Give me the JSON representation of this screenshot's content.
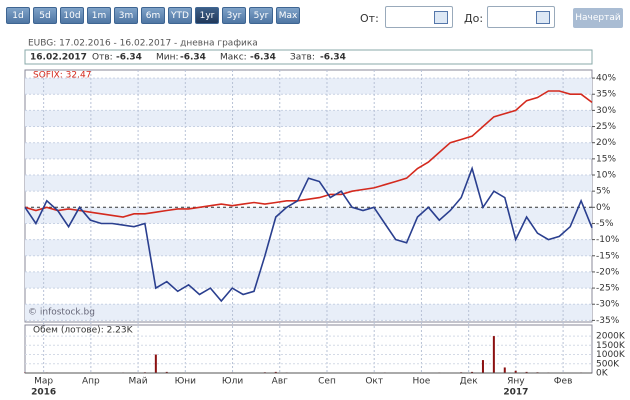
{
  "toolbar": {
    "ranges": [
      "1d",
      "5d",
      "10d",
      "1m",
      "3m",
      "6m",
      "YTD",
      "1yr",
      "3yr",
      "5yr",
      "Max"
    ],
    "active": "1yr",
    "from_label": "От:",
    "to_label": "До:",
    "button": "Начертай"
  },
  "chart_data": [
    {
      "type": "line",
      "title": "EUBG: 17.02.2016 - 16.02.2017 - дневна графика",
      "info": {
        "date": "16.02.2017",
        "fields": [
          {
            "label": "Отв:",
            "value": -6.34
          },
          {
            "label": "Мин:",
            "value": -6.34
          },
          {
            "label": "Макс:",
            "value": -6.34
          },
          {
            "label": "Затв:",
            "value": -6.34
          }
        ]
      },
      "watermark": "© infostock.bg",
      "series": [
        {
          "name": "SOFIX: 32.47",
          "color": "#d42a1e",
          "values": [
            0,
            -1,
            0,
            -1,
            -0.5,
            -1,
            -1.5,
            -2,
            -2.5,
            -3,
            -2,
            -2,
            -1.5,
            -1,
            -0.5,
            -0.5,
            0,
            0.5,
            1,
            0.5,
            1,
            1.5,
            1,
            1.5,
            2,
            2,
            2.5,
            3,
            4,
            4,
            5,
            5.5,
            6,
            7,
            8,
            9,
            12,
            14,
            17,
            20,
            21,
            22,
            25,
            28,
            29,
            30,
            33,
            34,
            36,
            36,
            35,
            35,
            32.47
          ]
        },
        {
          "color": "#2a3f8f",
          "values": [
            0,
            -5,
            2,
            -1,
            -6,
            0,
            -4,
            -5,
            -5,
            -5.5,
            -6,
            -5,
            -25,
            -23,
            -26,
            -24,
            -27,
            -25,
            -29,
            -25,
            -27,
            -26,
            -15,
            -3,
            0,
            2,
            9,
            8,
            3,
            5,
            0,
            -1,
            0,
            -5,
            -10,
            -11,
            -3,
            0,
            -4,
            -1,
            3,
            12,
            0,
            5,
            3,
            -10,
            -3,
            -8,
            -10,
            -9,
            -6,
            2,
            -6.34
          ]
        }
      ],
      "ylim": [
        -35.5,
        42.5
      ],
      "yticks": [
        {
          "value": 40,
          "label": "40%"
        },
        {
          "value": 35,
          "label": "35%"
        },
        {
          "value": 30,
          "label": "30%"
        },
        {
          "value": 25,
          "label": "25%"
        },
        {
          "value": 20,
          "label": "20%"
        },
        {
          "value": 15,
          "label": "15%"
        },
        {
          "value": 10,
          "label": "10%"
        },
        {
          "value": 5,
          "label": "5%"
        },
        {
          "value": 0,
          "label": "0%"
        },
        {
          "value": -5,
          "label": "-5%"
        },
        {
          "value": -10,
          "label": "-10%"
        },
        {
          "value": -15,
          "label": "-15%"
        },
        {
          "value": -20,
          "label": "-20%"
        },
        {
          "value": -25,
          "label": "-25%"
        },
        {
          "value": -30,
          "label": "-30%"
        },
        {
          "value": -35,
          "label": "-35%"
        }
      ],
      "grid": true
    },
    {
      "type": "bar",
      "title": "Обем (лотове): 2.23K",
      "color": "#8b1010",
      "values": [
        20,
        15,
        30,
        10,
        25,
        20,
        15,
        10,
        20,
        30,
        25,
        40,
        1000,
        60,
        30,
        20,
        25,
        15,
        20,
        30,
        20,
        25,
        40,
        60,
        30,
        20,
        25,
        15,
        10,
        20,
        15,
        10,
        20,
        30,
        25,
        20,
        15,
        20,
        30,
        25,
        40,
        60,
        700,
        2000,
        300,
        120,
        60,
        40,
        30,
        20,
        25,
        30,
        2.23
      ],
      "ylim": [
        0,
        2600
      ],
      "yticks": [
        {
          "value": 0,
          "label": "0K"
        },
        {
          "value": 500,
          "label": "500K"
        },
        {
          "value": 1000,
          "label": "1000K"
        },
        {
          "value": 1500,
          "label": "1500K"
        },
        {
          "value": 2000,
          "label": "2000K"
        }
      ],
      "x_labels": [
        "Мар",
        "Апр",
        "Май",
        "Юни",
        "Юли",
        "Авг",
        "Сеп",
        "Окт",
        "Ное",
        "Дек",
        "Яну",
        "Фев"
      ],
      "year_labels": [
        "2016",
        null,
        null,
        null,
        null,
        null,
        null,
        null,
        null,
        null,
        "2017",
        null
      ]
    }
  ]
}
